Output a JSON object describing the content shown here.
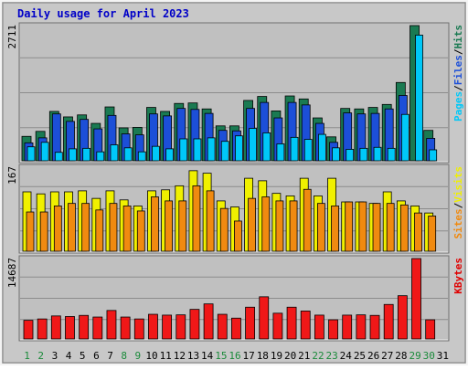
{
  "chart_data": {
    "type": "bar",
    "title": "Daily usage for April 2023",
    "categories": [
      "1",
      "2",
      "3",
      "4",
      "5",
      "6",
      "7",
      "8",
      "9",
      "10",
      "11",
      "12",
      "13",
      "14",
      "15",
      "16",
      "17",
      "18",
      "19",
      "20",
      "21",
      "22",
      "23",
      "24",
      "25",
      "26",
      "27",
      "28",
      "29",
      "30",
      "31"
    ],
    "weekend_days": [
      "1",
      "2",
      "8",
      "9",
      "15",
      "16",
      "22",
      "23",
      "29",
      "30"
    ],
    "panels": [
      {
        "id": "hits-files-pages",
        "ymax_label": "2711",
        "ymax": 2711,
        "right_labels": [
          "Pages",
          "/",
          "Files",
          "/",
          "Hits"
        ],
        "right_label_colors": [
          "#00c8f8",
          "#000000",
          "#1c4fd8",
          "#000000",
          "#1a7a52"
        ],
        "series": [
          {
            "name": "Hits",
            "color": "#1a7a52",
            "values": [
              490,
              590,
              990,
              880,
              920,
              750,
              1080,
              660,
              670,
              1070,
              990,
              1150,
              1160,
              1040,
              700,
              700,
              1210,
              1290,
              1000,
              1300,
              1240,
              860,
              480,
              1050,
              1040,
              1070,
              1130,
              1570,
              2711,
              610,
              null
            ]
          },
          {
            "name": "Files",
            "color": "#1c4fd8",
            "values": [
              360,
              460,
              940,
              790,
              830,
              640,
              910,
              540,
              520,
              940,
              900,
              1050,
              1030,
              950,
              610,
              600,
              1050,
              1170,
              860,
              1170,
              1120,
              750,
              370,
              960,
              940,
              950,
              1040,
              1310,
              null,
              450,
              null
            ]
          },
          {
            "name": "Pages",
            "color": "#00c8f8",
            "values": [
              280,
              370,
              170,
              240,
              250,
              180,
              320,
              260,
              180,
              290,
              240,
              440,
              440,
              460,
              390,
              500,
              650,
              560,
              340,
              470,
              430,
              530,
              260,
              230,
              250,
              270,
              250,
              930,
              2520,
              220,
              null
            ]
          }
        ]
      },
      {
        "id": "visits-sites",
        "ymax_label": "167",
        "ymax": 167,
        "right_labels": [
          "Sites",
          "/",
          "Visits"
        ],
        "right_label_colors": [
          "#f08a10",
          "#000000",
          "#f0f000"
        ],
        "series": [
          {
            "name": "Visits",
            "color": "#f0f000",
            "values": [
              118,
              114,
              118,
              118,
              120,
              105,
              120,
              102,
              90,
              120,
              122,
              130,
              160,
              155,
              100,
              88,
              145,
              140,
              115,
              110,
              145,
              110,
              145,
              98,
              98,
              95,
              118,
              100,
              90,
              76,
              null
            ]
          },
          {
            "name": "Sites",
            "color": "#f08a10",
            "values": [
              78,
              78,
              90,
              95,
              95,
              82,
              95,
              90,
              80,
              108,
              100,
              100,
              130,
              120,
              85,
              60,
              105,
              108,
              100,
              100,
              123,
              95,
              90,
              98,
              98,
              95,
              95,
              92,
              76,
              70,
              null
            ]
          }
        ]
      },
      {
        "id": "kbytes",
        "ymax_label": "14687",
        "ymax": 14687,
        "right_labels": [
          "KBytes"
        ],
        "right_label_colors": [
          "#e00000"
        ],
        "series": [
          {
            "name": "KBytes",
            "color": "#f01818",
            "values": [
              3400,
              3650,
              4200,
              4100,
              4300,
              4000,
              5200,
              4000,
              3650,
              4500,
              4350,
              4400,
              5400,
              6400,
              4500,
              3800,
              5800,
              7700,
              4700,
              5800,
              5100,
              4350,
              3500,
              4350,
              4400,
              4300,
              6300,
              7900,
              14687,
              3500,
              null
            ]
          }
        ]
      }
    ]
  }
}
